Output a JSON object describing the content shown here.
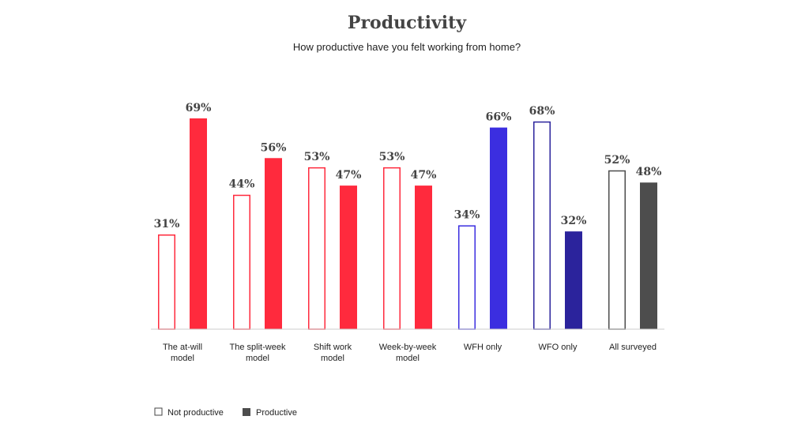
{
  "chart_data": {
    "type": "bar",
    "title": "Productivity",
    "subtitle": "How productive have you felt working from home?",
    "ylim": [
      0,
      100
    ],
    "grid": false,
    "legend_placement": "bottom-left",
    "categories": [
      [
        "The at-will",
        "model"
      ],
      [
        "The split-week",
        "model"
      ],
      [
        "Shift work",
        "model"
      ],
      [
        "Week-by-week",
        "model"
      ],
      [
        "WFH only"
      ],
      [
        "WFO only"
      ],
      [
        "All surveyed"
      ]
    ],
    "series": [
      {
        "name": "Not productive",
        "values": [
          31,
          44,
          53,
          53,
          34,
          68,
          52
        ]
      },
      {
        "name": "Productive",
        "values": [
          69,
          56,
          47,
          47,
          66,
          32,
          48
        ]
      }
    ],
    "value_labels": [
      [
        "31%",
        "69%"
      ],
      [
        "44%",
        "56%"
      ],
      [
        "53%",
        "47%"
      ],
      [
        "53%",
        "47%"
      ],
      [
        "34%",
        "66%"
      ],
      [
        "68%",
        "32%"
      ],
      [
        "52%",
        "48%"
      ]
    ],
    "colors": [
      "#ff2a3d",
      "#ff2a3d",
      "#ff2a3d",
      "#ff2a3d",
      "#3b2ee0",
      "#2b239c",
      "#4d4d4d"
    ],
    "legend_swatch_colors": [
      "#444444",
      "#4d4d4d"
    ]
  }
}
